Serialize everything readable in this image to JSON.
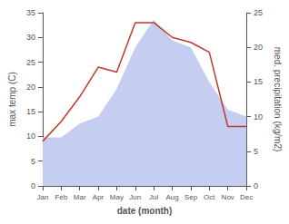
{
  "chart_data": {
    "type": "line",
    "xlabel": "date (month)",
    "ylabel": "max temp (C)",
    "y2label": "med. precipitation (kg/m2)",
    "categories": [
      "Jan",
      "Feb",
      "Mar",
      "Apr",
      "May",
      "Jun",
      "Jul",
      "Aug",
      "Sep",
      "Oct",
      "Nov",
      "Dec"
    ],
    "series": [
      {
        "type": "area",
        "color": "#c5cdf0",
        "axis": "y2",
        "values": [
          7,
          7,
          9,
          10,
          14,
          20,
          24,
          21,
          20,
          15,
          11,
          10
        ]
      },
      {
        "type": "line",
        "color": "#c0392b",
        "values": [
          9,
          13,
          18,
          24,
          23,
          33,
          33,
          30,
          29,
          27,
          12,
          12
        ]
      }
    ],
    "ylim": [
      0,
      35
    ],
    "yticks": [
      0,
      5,
      10,
      15,
      20,
      25,
      30,
      35
    ],
    "y2lim": [
      0,
      25
    ],
    "y2ticks": [
      0,
      5,
      10,
      15,
      20,
      25
    ],
    "grid": false
  }
}
